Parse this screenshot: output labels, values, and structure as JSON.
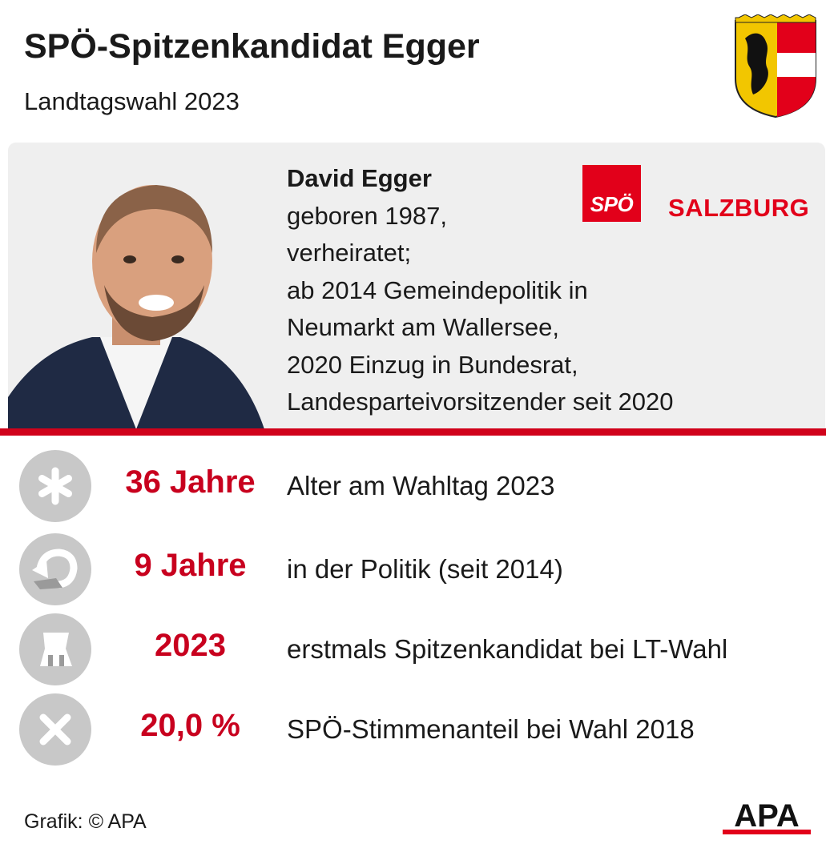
{
  "header": {
    "title": "SPÖ-Spitzenkandidat Egger",
    "subtitle": "Landtagswahl 2023",
    "crest_icon": "salzburg-coat-of-arms-icon"
  },
  "profile": {
    "name": "David Egger",
    "bio_lines": [
      "geboren 1987,",
      "verheiratet;",
      "ab 2014 Gemeindepolitik in",
      "Neumarkt am Wallersee,",
      "2020 Einzug in Bundesrat,",
      "Landesparteivorsitzender seit 2020"
    ],
    "party_logo_box": "SPÖ",
    "party_logo_text": "SALZBURG"
  },
  "facts": [
    {
      "icon": "asterisk-icon",
      "value": "36 Jahre",
      "label": "Alter am Wahltag 2023"
    },
    {
      "icon": "curved-arrow-icon",
      "value": "9 Jahre",
      "label": "in der Politik (seit 2014)"
    },
    {
      "icon": "placard-icon",
      "value": "2023",
      "label": "erstmals Spitzenkandidat bei LT-Wahl"
    },
    {
      "icon": "cross-icon",
      "value": "20,0 %",
      "label": "SPÖ-Stimmenanteil bei Wahl 2018"
    }
  ],
  "footer": {
    "credit": "Grafik: © APA",
    "logo": "APA"
  },
  "colors": {
    "accent_red": "#c8001e",
    "party_red": "#e2001a",
    "panel_gray": "#efefef",
    "icon_gray": "#c8c8c8"
  }
}
